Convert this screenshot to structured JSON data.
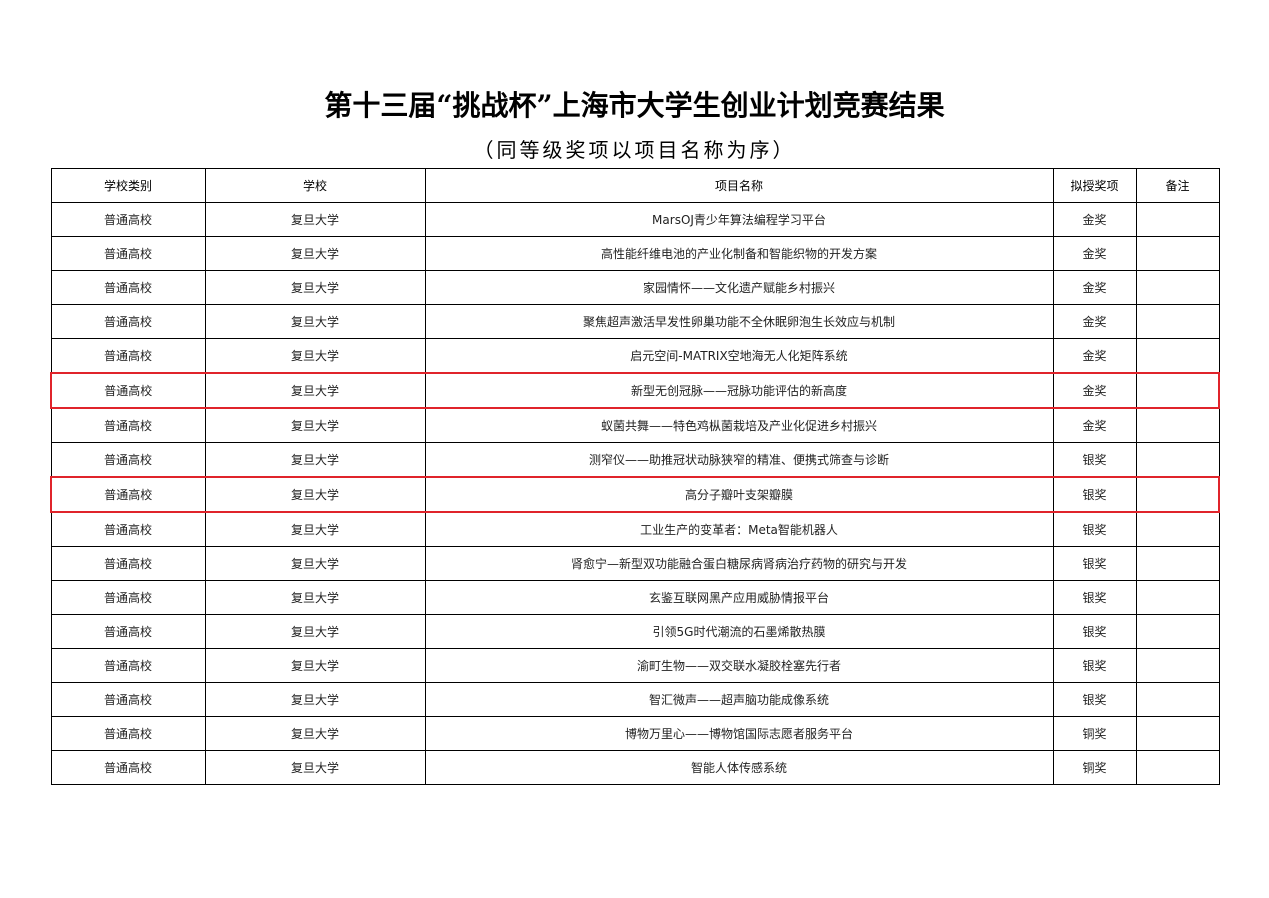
{
  "title": "第十三届“挑战杯”上海市大学生创业计划竞赛结果",
  "subtitle": "（同等级奖项以项目名称为序）",
  "highlight_color": "#e0242b",
  "columns": [
    "学校类别",
    "学校",
    "项目名称",
    "拟授奖项",
    "备注"
  ],
  "rows": [
    {
      "category": "普通高校",
      "school": "复旦大学",
      "project": "MarsOJ青少年算法编程学习平台",
      "award": "金奖",
      "note": "",
      "highlighted": false
    },
    {
      "category": "普通高校",
      "school": "复旦大学",
      "project": "高性能纤维电池的产业化制备和智能织物的开发方案",
      "award": "金奖",
      "note": "",
      "highlighted": false
    },
    {
      "category": "普通高校",
      "school": "复旦大学",
      "project": "家园情怀——文化遗产赋能乡村振兴",
      "award": "金奖",
      "note": "",
      "highlighted": false
    },
    {
      "category": "普通高校",
      "school": "复旦大学",
      "project": "聚焦超声激活早发性卵巢功能不全休眠卵泡生长效应与机制",
      "award": "金奖",
      "note": "",
      "highlighted": false
    },
    {
      "category": "普通高校",
      "school": "复旦大学",
      "project": "启元空间-MATRIX空地海无人化矩阵系统",
      "award": "金奖",
      "note": "",
      "highlighted": false
    },
    {
      "category": "普通高校",
      "school": "复旦大学",
      "project": "新型无创冠脉——冠脉功能评估的新高度",
      "award": "金奖",
      "note": "",
      "highlighted": true
    },
    {
      "category": "普通高校",
      "school": "复旦大学",
      "project": "蚁菌共舞——特色鸡枞菌栽培及产业化促进乡村振兴",
      "award": "金奖",
      "note": "",
      "highlighted": false
    },
    {
      "category": "普通高校",
      "school": "复旦大学",
      "project": "测窄仪——助推冠状动脉狭窄的精准、便携式筛查与诊断",
      "award": "银奖",
      "note": "",
      "highlighted": false
    },
    {
      "category": "普通高校",
      "school": "复旦大学",
      "project": "高分子瓣叶支架瓣膜",
      "award": "银奖",
      "note": "",
      "highlighted": true
    },
    {
      "category": "普通高校",
      "school": "复旦大学",
      "project": "工业生产的变革者：Meta智能机器人",
      "award": "银奖",
      "note": "",
      "highlighted": false
    },
    {
      "category": "普通高校",
      "school": "复旦大学",
      "project": "肾愈宁—新型双功能融合蛋白糖尿病肾病治疗药物的研究与开发",
      "award": "银奖",
      "note": "",
      "highlighted": false
    },
    {
      "category": "普通高校",
      "school": "复旦大学",
      "project": "玄鉴互联网黑产应用威胁情报平台",
      "award": "银奖",
      "note": "",
      "highlighted": false
    },
    {
      "category": "普通高校",
      "school": "复旦大学",
      "project": "引领5G时代潮流的石墨烯散热膜",
      "award": "银奖",
      "note": "",
      "highlighted": false
    },
    {
      "category": "普通高校",
      "school": "复旦大学",
      "project": "渝町生物——双交联水凝胶栓塞先行者",
      "award": "银奖",
      "note": "",
      "highlighted": false
    },
    {
      "category": "普通高校",
      "school": "复旦大学",
      "project": "智汇微声——超声脑功能成像系统",
      "award": "银奖",
      "note": "",
      "highlighted": false
    },
    {
      "category": "普通高校",
      "school": "复旦大学",
      "project": "博物万里心——博物馆国际志愿者服务平台",
      "award": "铜奖",
      "note": "",
      "highlighted": false
    },
    {
      "category": "普通高校",
      "school": "复旦大学",
      "project": "智能人体传感系统",
      "award": "铜奖",
      "note": "",
      "highlighted": false
    }
  ]
}
